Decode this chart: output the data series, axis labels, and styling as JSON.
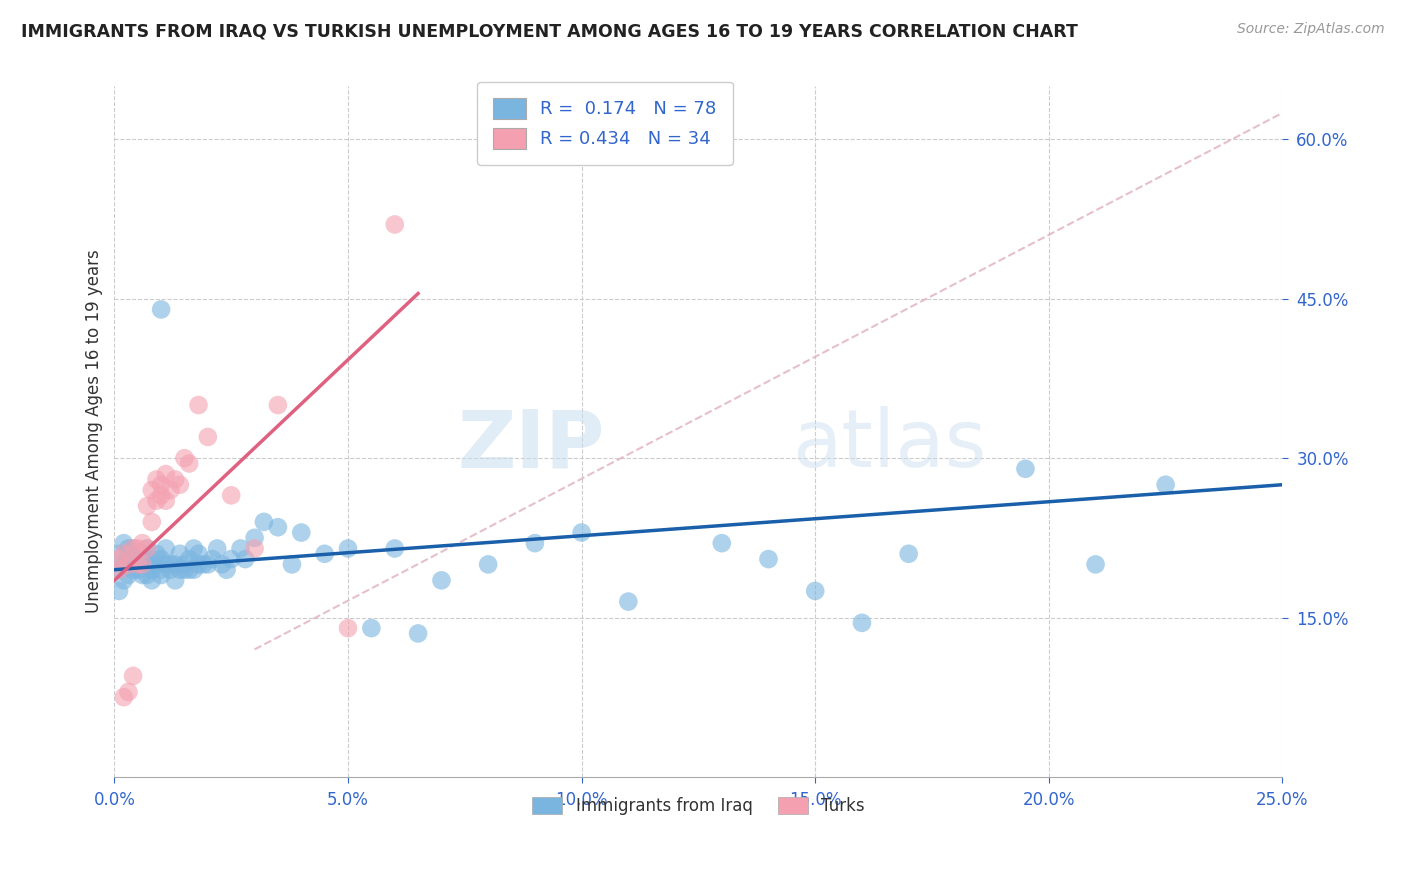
{
  "title": "IMMIGRANTS FROM IRAQ VS TURKISH UNEMPLOYMENT AMONG AGES 16 TO 19 YEARS CORRELATION CHART",
  "source": "Source: ZipAtlas.com",
  "ylabel": "Unemployment Among Ages 16 to 19 years",
  "xlim": [
    0.0,
    0.25
  ],
  "ylim": [
    0.0,
    0.65
  ],
  "xticks": [
    0.0,
    0.05,
    0.1,
    0.15,
    0.2,
    0.25
  ],
  "yticks": [
    0.15,
    0.3,
    0.45,
    0.6
  ],
  "ytick_labels": [
    "15.0%",
    "30.0%",
    "45.0%",
    "60.0%"
  ],
  "xtick_labels": [
    "0.0%",
    "5.0%",
    "10.0%",
    "15.0%",
    "20.0%",
    "25.0%"
  ],
  "legend_R1": "0.174",
  "legend_N1": "78",
  "legend_R2": "0.434",
  "legend_N2": "34",
  "blue_color": "#7ab5e0",
  "pink_color": "#f4a0b0",
  "blue_line_color": "#1a5faa",
  "pink_line_color": "#e06080",
  "ref_line_color": "#d0d0d0",
  "watermark_zip": "ZIP",
  "watermark_atlas": "atlas",
  "blue_scatter_x": [
    0.001,
    0.001,
    0.001,
    0.002,
    0.002,
    0.002,
    0.003,
    0.003,
    0.003,
    0.004,
    0.004,
    0.004,
    0.005,
    0.005,
    0.005,
    0.006,
    0.006,
    0.006,
    0.007,
    0.007,
    0.007,
    0.008,
    0.008,
    0.008,
    0.009,
    0.009,
    0.01,
    0.01,
    0.01,
    0.011,
    0.011,
    0.012,
    0.012,
    0.013,
    0.013,
    0.014,
    0.014,
    0.015,
    0.015,
    0.016,
    0.016,
    0.017,
    0.017,
    0.018,
    0.018,
    0.019,
    0.02,
    0.021,
    0.022,
    0.023,
    0.024,
    0.025,
    0.027,
    0.028,
    0.03,
    0.032,
    0.035,
    0.038,
    0.04,
    0.045,
    0.05,
    0.055,
    0.06,
    0.065,
    0.07,
    0.08,
    0.09,
    0.1,
    0.11,
    0.13,
    0.14,
    0.15,
    0.16,
    0.17,
    0.195,
    0.21,
    0.225,
    0.01
  ],
  "blue_scatter_y": [
    0.195,
    0.175,
    0.21,
    0.22,
    0.185,
    0.2,
    0.205,
    0.19,
    0.215,
    0.2,
    0.195,
    0.215,
    0.21,
    0.195,
    0.205,
    0.2,
    0.21,
    0.19,
    0.215,
    0.2,
    0.19,
    0.205,
    0.195,
    0.185,
    0.21,
    0.2,
    0.195,
    0.205,
    0.19,
    0.2,
    0.215,
    0.195,
    0.2,
    0.185,
    0.2,
    0.195,
    0.21,
    0.195,
    0.2,
    0.195,
    0.205,
    0.195,
    0.215,
    0.2,
    0.21,
    0.2,
    0.2,
    0.205,
    0.215,
    0.2,
    0.195,
    0.205,
    0.215,
    0.205,
    0.225,
    0.24,
    0.235,
    0.2,
    0.23,
    0.21,
    0.215,
    0.14,
    0.215,
    0.135,
    0.185,
    0.2,
    0.22,
    0.23,
    0.165,
    0.22,
    0.205,
    0.175,
    0.145,
    0.21,
    0.29,
    0.2,
    0.275,
    0.44
  ],
  "pink_scatter_x": [
    0.001,
    0.001,
    0.002,
    0.002,
    0.003,
    0.003,
    0.004,
    0.004,
    0.005,
    0.005,
    0.006,
    0.006,
    0.007,
    0.007,
    0.008,
    0.008,
    0.009,
    0.009,
    0.01,
    0.01,
    0.011,
    0.011,
    0.012,
    0.013,
    0.014,
    0.015,
    0.016,
    0.018,
    0.02,
    0.025,
    0.03,
    0.035,
    0.05,
    0.06
  ],
  "pink_scatter_y": [
    0.205,
    0.195,
    0.21,
    0.075,
    0.2,
    0.08,
    0.215,
    0.095,
    0.2,
    0.215,
    0.2,
    0.22,
    0.215,
    0.255,
    0.24,
    0.27,
    0.26,
    0.28,
    0.265,
    0.275,
    0.26,
    0.285,
    0.27,
    0.28,
    0.275,
    0.3,
    0.295,
    0.35,
    0.32,
    0.265,
    0.215,
    0.35,
    0.14,
    0.52
  ],
  "blue_trend_x": [
    0.0,
    0.25
  ],
  "blue_trend_y": [
    0.195,
    0.275
  ],
  "pink_trend_x": [
    0.0,
    0.065
  ],
  "pink_trend_y": [
    0.185,
    0.455
  ],
  "ref_line_x": [
    0.03,
    0.25
  ],
  "ref_line_y": [
    0.12,
    0.625
  ]
}
